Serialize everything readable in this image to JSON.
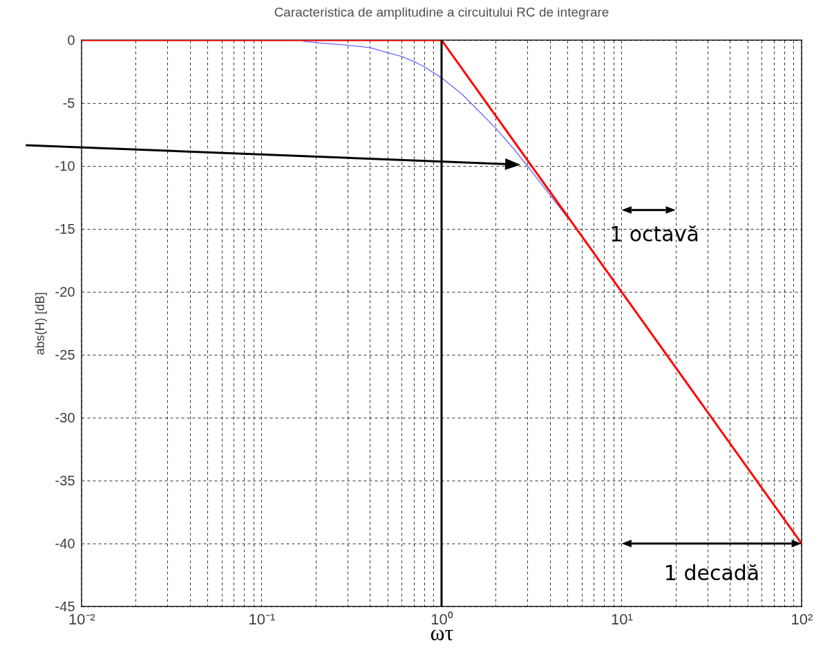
{
  "chart_data": {
    "type": "line",
    "title": "Caracteristica de amplitudine a circuitului RC de integrare",
    "xlabel": "ωτ",
    "ylabel": "abs(H) [dB]",
    "log": "x",
    "grid": true,
    "marker": "none",
    "line_style": "solid",
    "xlim": [
      0.01,
      100
    ],
    "ylim": [
      -45,
      0
    ],
    "xticks": [
      {
        "value": 0.01,
        "label": "10⁻²"
      },
      {
        "value": 0.02,
        "label": null
      },
      {
        "value": 0.03,
        "label": null
      },
      {
        "value": 0.04,
        "label": null
      },
      {
        "value": 0.05,
        "label": null
      },
      {
        "value": 0.06,
        "label": null
      },
      {
        "value": 0.07,
        "label": null
      },
      {
        "value": 0.08,
        "label": null
      },
      {
        "value": 0.09,
        "label": null
      },
      {
        "value": 0.1,
        "label": "10⁻¹"
      },
      {
        "value": 0.2,
        "label": null
      },
      {
        "value": 0.3,
        "label": null
      },
      {
        "value": 0.4,
        "label": null
      },
      {
        "value": 0.5,
        "label": null
      },
      {
        "value": 0.6,
        "label": null
      },
      {
        "value": 0.7,
        "label": null
      },
      {
        "value": 0.8,
        "label": null
      },
      {
        "value": 0.9,
        "label": null
      },
      {
        "value": 1,
        "label": "10⁰"
      },
      {
        "value": 2,
        "label": null
      },
      {
        "value": 3,
        "label": null
      },
      {
        "value": 4,
        "label": null
      },
      {
        "value": 5,
        "label": null
      },
      {
        "value": 6,
        "label": null
      },
      {
        "value": 7,
        "label": null
      },
      {
        "value": 8,
        "label": null
      },
      {
        "value": 9,
        "label": null
      },
      {
        "value": 10,
        "label": "10¹"
      },
      {
        "value": 20,
        "label": null
      },
      {
        "value": 30,
        "label": null
      },
      {
        "value": 40,
        "label": null
      },
      {
        "value": 50,
        "label": null
      },
      {
        "value": 60,
        "label": null
      },
      {
        "value": 70,
        "label": null
      },
      {
        "value": 80,
        "label": null
      },
      {
        "value": 90,
        "label": null
      },
      {
        "value": 100,
        "label": "10²"
      }
    ],
    "yticks": [
      0,
      -5,
      -10,
      -15,
      -20,
      -25,
      -30,
      -35,
      -40,
      -45
    ],
    "series": [
      {
        "color": "#6666ff",
        "x": [
          0.17,
          0.2,
          0.3,
          0.4,
          0.5,
          0.6,
          0.7,
          0.8,
          1,
          1.3,
          1.6,
          2,
          2.5,
          3,
          4,
          5
        ],
        "values": [
          -0.1,
          -0.2,
          -0.4,
          -0.6,
          -1,
          -1.3,
          -1.7,
          -2.1,
          -3,
          -4.3,
          -5.6,
          -7,
          -8.6,
          -10,
          -12.3,
          -14.1
        ]
      },
      {
        "color": "#ff0000",
        "x": [
          0.01,
          1,
          100
        ],
        "values": [
          0,
          0,
          -40
        ]
      }
    ],
    "ref_lines": [
      {
        "axis": "x",
        "value": 1,
        "color": "#000000"
      }
    ],
    "annotations": [
      "1 octavă",
      "1 decadă"
    ]
  }
}
